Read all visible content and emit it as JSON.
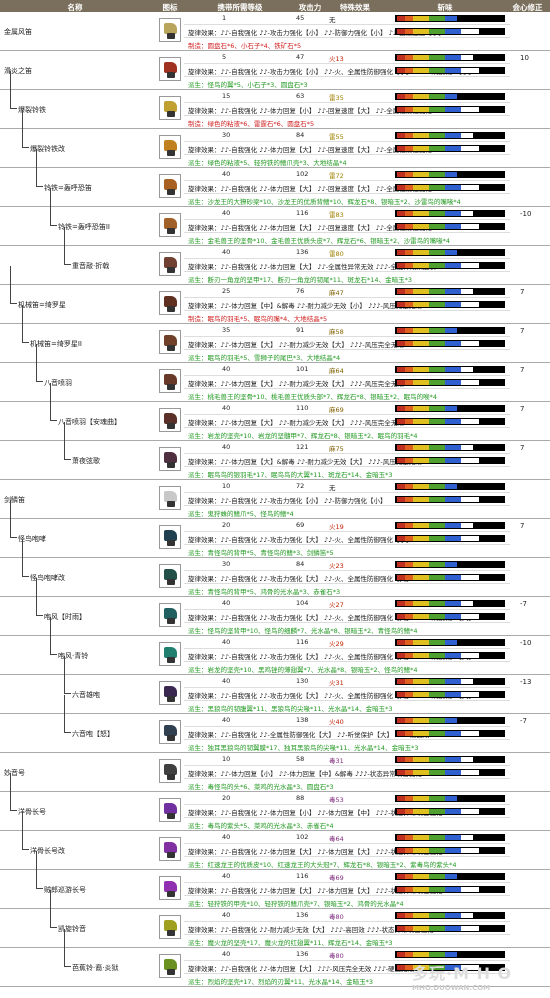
{
  "header": {
    "name": "名称",
    "icon": "图标",
    "deco": "携带所需等级",
    "atk": "攻击力",
    "spc": "特殊效果",
    "sharp": "斩味",
    "aff": "会心修正"
  },
  "rows": [
    {
      "name": "金属风笛",
      "indent": 0,
      "lv": "1",
      "atk": "45",
      "spc": "无",
      "aff": "",
      "s1": "旋律效果：♪♪-自我强化  ♪♪-攻击力强化【小】  ♪♪-防御力强化【小】  ♪♪-回复速度【小】",
      "s2": "制造：圆盘石*6、小石子*4、铁矿石*5",
      "s2type": "制造",
      "color": "#b8a45a"
    },
    {
      "name": "滑炎之笛",
      "indent": 0,
      "lv": "5",
      "atk": "47",
      "spc": "火13",
      "aff": "10",
      "s1": "旋律效果：♪♪-自我强化  ♪♪-攻击力强化【小】  ♪♪-火、全属性防御强化【小】  ♪♪♪-听觉保护【小】",
      "s2": "派生：怪鸟的翼*5、小石子*3、圆盘石*3",
      "s2type": "派生",
      "color": "#a03020"
    },
    {
      "name": "爆裂铃铁",
      "indent": 1,
      "lv": "15",
      "atk": "63",
      "spc": "雷35",
      "aff": "",
      "s1": "旋律效果：♪♪-自我强化  ♪♪-体力回复【小】  ♪♪-回复速度【大】  ♪♪-全属性耐性强化",
      "s2": "制造：绿色的粘液*6、雷霆石*6、圆盘石*5",
      "s2type": "制造",
      "color": "#c0a030"
    },
    {
      "name": "爆裂铃铁改",
      "indent": 2,
      "lv": "30",
      "atk": "84",
      "spc": "雷55",
      "aff": "",
      "s1": "旋律效果：♪♪-自我强化  ♪♪-体力回复【大】  ♪♪-回复速度【大】  ♪♪-全属性耐性强化",
      "s2": "派生：绿色的粘液*5、轻狩铁的鳍爪壳*3、大地结晶*4",
      "s2type": "派生",
      "color": "#c08020"
    },
    {
      "name": "铃铁=轰呼恐笛",
      "indent": 3,
      "lv": "40",
      "atk": "102",
      "spc": "雷72",
      "aff": "",
      "s1": "旋律效果：♪♪-自我强化  ♪♪-体力回复【大】  ♪♪-回复速度【大】  ♪♪-全属性耐性强化",
      "s2": "派生：沙龙王的大獠砂梁*10、沙龙王的优质背鳍*10、辉龙石*8、银暗玉*2、沙雷鸟的嘴喙*4",
      "s2type": "派生",
      "color": "#a86020"
    },
    {
      "name": "铃铁=轰呼恐笛II",
      "indent": 4,
      "lv": "40",
      "atk": "116",
      "spc": "雷83",
      "aff": "-10",
      "s1": "旋律效果：♪♪-自我强化  ♪♪-体力回复【大】  ♪♪-回复速度【大】  ♪♪-全属性耐性强化",
      "s2": "派生：金毛兽王的坚骨*10、金毛兽王优质头皮*7、辉龙石*6、银暗玉*2、沙雷鸟的嘴喙*4",
      "s2type": "派生",
      "color": "#a06028"
    },
    {
      "name": "重音敲·折戟",
      "indent": 5,
      "lv": "40",
      "atk": "136",
      "spc": "雷80",
      "aff": "",
      "s1": "旋律效果：♪♪-自我强化  ♪♪-体力回复【大】  ♪♪-全属性异常无效  ♪♪♪-全旋律效果延长",
      "s2": "派生：断刃一角龙的坚甲*17、断刃一角龙的韧尾*11、斑龙石*14、金暗玉*3",
      "s2type": "派生",
      "color": "#704030"
    },
    {
      "name": "机械笛=绮罗星",
      "indent": 1,
      "lv": "25",
      "atk": "76",
      "spc": "麻47",
      "aff": "7",
      "s1": "旋律效果：♪♪-体力回复【中】&解毒  ♪♪-耐力减少无效【小】  ♪♪♪-风压完全无效",
      "s2": "制造：眠鸟的羽毛*5、眠鸟的嘴*4、大地结晶*5",
      "s2type": "制造",
      "color": "#603020"
    },
    {
      "name": "机械笛=绮罗星II",
      "indent": 2,
      "lv": "35",
      "atk": "91",
      "spc": "麻58",
      "aff": "7",
      "s1": "旋律效果：♪♪-体力回复【大】  ♪♪-耐力减少无效【大】  ♪♪♪-风压完全无效",
      "s2": "派生：眠鸟的羽毛*5、雪狮子的尾巴*3、大地结晶*4",
      "s2type": "派生",
      "color": "#704028"
    },
    {
      "name": "八音喷羽",
      "indent": 3,
      "lv": "40",
      "atk": "101",
      "spc": "麻64",
      "aff": "7",
      "s1": "旋律效果：♪♪-体力回复【大】  ♪♪-耐力减少无效【大】  ♪♪♪-风压完全无效",
      "s2": "派生：桃毛兽王的坚骨*10、桃毛兽王优质头部*7、辉龙石*8、银暗玉*2、眠鸟的喉*4",
      "s2type": "派生",
      "color": "#683828"
    },
    {
      "name": "八音喷羽【安魂曲】",
      "indent": 4,
      "lv": "40",
      "atk": "110",
      "spc": "麻69",
      "aff": "7",
      "s1": "旋律效果：♪♪-体力回复【大】  ♪♪-耐力减少无效【大】  ♪♪♪-风压完全无效",
      "s2": "派生：岩龙的坚壳*10、岩龙的坚髓甲*7、辉龙石*8、银暗玉*2、眠鸟的羽毛*4",
      "s2type": "派生",
      "color": "#5a3028"
    },
    {
      "name": "萧夜弦歌",
      "indent": 5,
      "lv": "40",
      "atk": "121",
      "spc": "麻75",
      "aff": "7",
      "s1": "旋律效果：♪♪-体力回复【大】&解毒  ♪♪-耐力减少无效【大】  ♪♪♪-风压完全无效",
      "s2": "派生：眠鸟鸟的银羽毛*17、眠鸟鸟的大翼*11、斑龙石*14、金暗玉*3",
      "s2type": "派生",
      "color": "#503040"
    },
    {
      "name": "剑鳞笛",
      "indent": 0,
      "lv": "10",
      "atk": "72",
      "spc": "无",
      "aff": "",
      "s1": "旋律效果：♪♪-自我强化  ♪♪-攻击力强化【小】  ♪♪-防御力强化【小】",
      "s2": "派生：鬼狩蛛的鳍爪*5、怪鸟的鳍*4",
      "s2type": "派生",
      "color": "#c8c8c8"
    },
    {
      "name": "怪鸟咆哮",
      "indent": 1,
      "lv": "20",
      "atk": "69",
      "spc": "火19",
      "aff": "7",
      "s1": "旋律效果：♪♪-自我强化  ♪♪-攻击力强化【大】  ♪♪-火、全属性防御强化【小】",
      "s2": "派生：青怪鸟的背甲*5、青怪鸟的鳍*3、剑鳞笛*5",
      "s2type": "派生",
      "color": "#204050"
    },
    {
      "name": "怪鸟咆哮改",
      "indent": 2,
      "lv": "30",
      "atk": "84",
      "spc": "火23",
      "aff": "",
      "s1": "旋律效果：♪♪-自我强化  ♪♪-攻击力强化【大】  ♪♪-火、全属性防御强化【大】",
      "s2": "派生：青怪鸟的背甲*5、鸿骨的光水晶*3、赤雀石*3",
      "s2type": "派生",
      "color": "#205048"
    },
    {
      "name": "咆风【时雨】",
      "indent": 3,
      "lv": "40",
      "atk": "104",
      "spc": "火27",
      "aff": "-7",
      "s1": "旋律效果：♪♪-自我强化  ♪♪-攻击力强化【大】  ♪♪-火、全属性防御强化【大】  ♪♪♪-听觉保护【大】",
      "s2": "派生：怪鸟的坚背甲*10、怪鸟的细麟*7、光水晶*8、银暗玉*2、青怪鸟的鳍*4",
      "s2type": "派生",
      "color": "#206060"
    },
    {
      "name": "咆风·青铃",
      "indent": 4,
      "lv": "40",
      "atk": "116",
      "spc": "火29",
      "aff": "-10",
      "s1": "旋律效果：♪♪-自我强化  ♪♪-攻击力强化【大】  ♪♪-火、全属性防御强化【大】  ♪♪♪-听觉保护【大】",
      "s2": "派生：岩龙的坚壳*10、黑鸡锉的薄翅翼*7、光水晶*8、银暗玉*2、怪鸟的鳍*4",
      "s2type": "派生",
      "color": "#208070"
    },
    {
      "name": "六音雄咆",
      "indent": 5,
      "lv": "40",
      "atk": "130",
      "spc": "火31",
      "aff": "-13",
      "s1": "旋律效果：♪♪-自我强化  ♪♪-攻击力强化【大】  ♪♪-火、全属性防御强化【大】  ♪♪♪-听觉保护【大】",
      "s2": "派生：黑狼鸟的韧腹翼*11、黑狼鸟的尖喙*11、光水晶*14、金暗玉*3",
      "s2type": "派生",
      "color": "#3a2850"
    },
    {
      "name": "六音咆【怒】",
      "indent": 5,
      "lv": "40",
      "atk": "138",
      "spc": "火40",
      "aff": "-7",
      "s1": "旋律效果：♪♪-自我强化  ♪♪-全属性防御强化【大】  ♪♪-听觉保护【大】  ♪♪♪-高回效",
      "s2": "派生：独耳黑狼鸟的韧翼膜*17、独耳黑狼鸟的尖喙*11、光水晶*14、金暗玉*3",
      "s2type": "派生",
      "color": "#304050"
    },
    {
      "name": "妙音号",
      "indent": 0,
      "lv": "10",
      "atk": "58",
      "spc": "毒31",
      "aff": "",
      "s1": "旋律效果：♪♪-体力回复【小】  ♪♪-体力回复【中】&解毒  ♪♪♪-状态异常攻击强化",
      "s2": "派生：毒怪鸟的头*6、菜鸡的光水晶*3、圆盘石*3",
      "s2type": "派生",
      "color": "#404040"
    },
    {
      "name": "洋骨长号",
      "indent": 1,
      "lv": "20",
      "atk": "88",
      "spc": "毒53",
      "aff": "",
      "s1": "旋律效果：♪♪-自我强化  ♪♪-体力回复【小】  ♪♪-体力回复【中】  ♪♪♪-状态异常攻击强化",
      "s2": "派生：毒鸟的紫头*5、菜鸡的光水晶*3、赤雀石*4",
      "s2type": "派生",
      "color": "#7030a0"
    },
    {
      "name": "洋骨长号改",
      "indent": 2,
      "lv": "40",
      "atk": "102",
      "spc": "毒64",
      "aff": "",
      "s1": "旋律效果：♪♪-自我强化  ♪♪-体力回复【大】  ♪♪-体力回复【大】  ♪♪♪-状态异常攻击强化",
      "s2": "派生：红速龙王的优质皮*10、红速龙王的大头冠*7、辉龙石*8、银暗玉*2、紫毒鸟的紫头*4",
      "s2type": "派生",
      "color": "#8030a0"
    },
    {
      "name": "贼郎巡游长号",
      "indent": 3,
      "lv": "40",
      "atk": "116",
      "spc": "毒69",
      "aff": "",
      "s1": "旋律效果：♪♪-自我强化  ♪♪-体力回复【大】  ♪♪-体力回复【大】  ♪♪♪-状态异常攻击强化",
      "s2": "派生：轻狩铁的甲壳*10、轻狩铁的鳍爪壳*7、银暗玉*2、鸿骨的光水晶*4",
      "s2type": "派生",
      "color": "#9030b0"
    },
    {
      "name": "凯旋铃音",
      "indent": 4,
      "lv": "40",
      "atk": "136",
      "spc": "毒80",
      "aff": "",
      "s1": "旋律效果：♪♪-自我强化  ♪♪-耐力减少无效【大】  ♪♪♪-高回效  ♪♪♪-状态异常攻击强化",
      "s2": "派生：魔火龙的坚壳*17、魔火龙的红翅翼*11、辉龙石*14、金暗玉*3",
      "s2type": "派生",
      "color": "#a0a020"
    },
    {
      "name": "芭蕉铃·裔·炎狱",
      "indent": 5,
      "lv": "40",
      "atk": "136",
      "spc": "毒80",
      "aff": "",
      "s1": "旋律效果：♪♪-自我强化  ♪♪-体力回复【大】  ♪♪♪-风压完全无效  ♪♪♪-硬直无效",
      "s2": "派生：烈焰的坚壳*17、烈焰的刃翼*11、光水晶*14、金暗玉*3",
      "s2type": "派生",
      "color": "#6a9020"
    }
  ],
  "watermark": {
    "main": "多玩·M H O",
    "sub": "MHO.DUOWAN.COM"
  }
}
